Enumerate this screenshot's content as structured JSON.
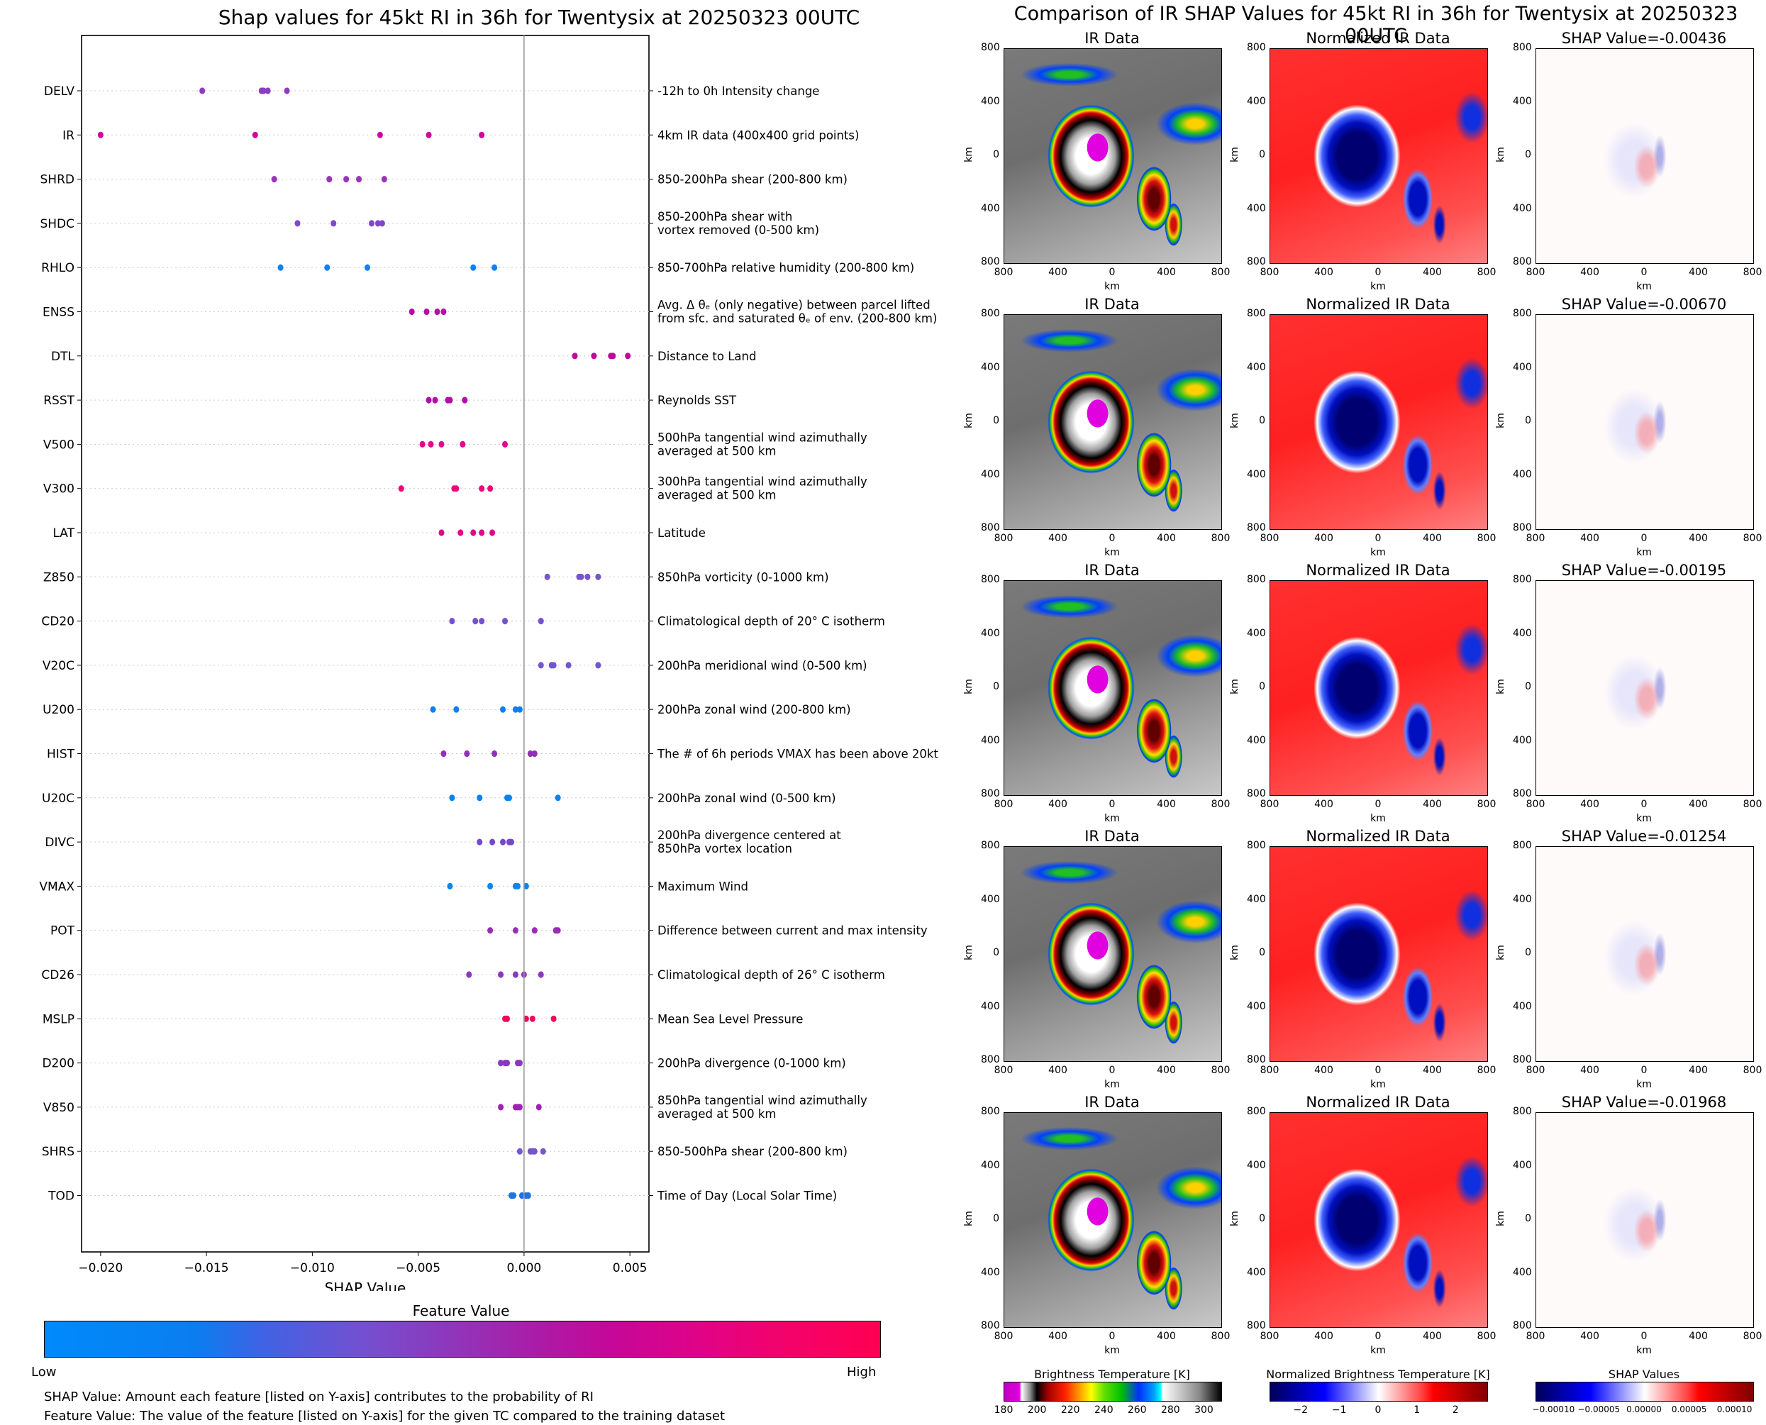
{
  "left_title": "Shap values for 45kt RI in 36h for Twentysix at 20250323 00UTC",
  "right_title": "Comparison of IR SHAP Values for 45kt RI in 36h for Twentysix at 20250323 00UTC",
  "chart_data": [
    {
      "type": "scatter",
      "title": "Shap values for 45kt RI in 36h for Twentysix at 20250323 00UTC",
      "xlabel": "SHAP Value",
      "ylabel": "",
      "xlim": [
        -0.0209,
        0.0059
      ],
      "xticks": [
        -0.02,
        -0.015,
        -0.01,
        -0.005,
        0.0,
        0.005
      ],
      "xtick_labels": [
        "−0.020",
        "−0.015",
        "−0.010",
        "−0.005",
        "0.000",
        "0.005"
      ],
      "zero_line": 0.0,
      "grid": "horizontal dotted",
      "features": [
        {
          "name": "DELV",
          "description": [
            "-12h to 0h Intensity change"
          ],
          "color": "#8e3cbf",
          "values": [
            -0.0152,
            -0.0124,
            -0.0123,
            -0.0121,
            -0.0112
          ]
        },
        {
          "name": "IR",
          "description": [
            "4km IR data (400x400 grid points)"
          ],
          "color": "#d0059f",
          "values": [
            -0.02,
            -0.0127,
            -0.0068,
            -0.0045,
            -0.002
          ]
        },
        {
          "name": "SHRD",
          "description": [
            "850-200hPa shear (200-800 km)"
          ],
          "color": "#9a34b6",
          "values": [
            -0.0118,
            -0.0092,
            -0.0084,
            -0.0078,
            -0.0066
          ]
        },
        {
          "name": "SHDC",
          "description": [
            "850-200hPa shear with",
            "vortex removed (0-500 km)"
          ],
          "color": "#7e48c8",
          "values": [
            -0.0107,
            -0.009,
            -0.0072,
            -0.0069,
            -0.0067
          ]
        },
        {
          "name": "RHLO",
          "description": [
            "850-700hPa relative humidity (200-800 km)"
          ],
          "color": "#1380f0",
          "values": [
            -0.0115,
            -0.0093,
            -0.0074,
            -0.0024,
            -0.0014
          ]
        },
        {
          "name": "ENSS",
          "description": [
            "Avg. Δ θₑ (only negative) between parcel lifted",
            "from sfc. and saturated θₑ of env. (200-800 km)"
          ],
          "color": "#b410a6",
          "values": [
            -0.0053,
            -0.0046,
            -0.0041,
            -0.0038
          ]
        },
        {
          "name": "DTL",
          "description": [
            "Distance to Land"
          ],
          "color": "#c0099f",
          "values": [
            0.0024,
            0.0033,
            0.0041,
            0.0042,
            0.0049
          ]
        },
        {
          "name": "RSST",
          "description": [
            "Reynolds SST"
          ],
          "color": "#b20ea8",
          "values": [
            -0.0045,
            -0.0042,
            -0.0036,
            -0.0035,
            -0.0028
          ]
        },
        {
          "name": "V500",
          "description": [
            "500hPa tangential wind azimuthally",
            "averaged at 500 km"
          ],
          "color": "#e30490",
          "values": [
            -0.0048,
            -0.0044,
            -0.0039,
            -0.0029,
            -0.0009
          ]
        },
        {
          "name": "V300",
          "description": [
            "300hPa tangential wind azimuthally",
            "averaged at 500 km"
          ],
          "color": "#ee0378",
          "values": [
            -0.0058,
            -0.0033,
            -0.0032,
            -0.002,
            -0.0016
          ]
        },
        {
          "name": "LAT",
          "description": [
            "Latitude"
          ],
          "color": "#e1048e",
          "values": [
            -0.0039,
            -0.003,
            -0.0024,
            -0.002,
            -0.0015
          ]
        },
        {
          "name": "Z850",
          "description": [
            "850hPa vorticity (0-1000 km)"
          ],
          "color": "#7755cc",
          "values": [
            0.0011,
            0.0026,
            0.0027,
            0.003,
            0.0035
          ]
        },
        {
          "name": "CD20",
          "description": [
            "Climatological depth of 20° C isotherm"
          ],
          "color": "#7351d0",
          "values": [
            -0.0034,
            -0.0023,
            -0.002,
            -0.0009,
            0.0008
          ]
        },
        {
          "name": "V20C",
          "description": [
            "200hPa meridional wind (0-500 km)"
          ],
          "color": "#7355cf",
          "values": [
            0.0008,
            0.0013,
            0.0014,
            0.0021,
            0.0035
          ]
        },
        {
          "name": "U200",
          "description": [
            "200hPa zonal wind (200-800 km)"
          ],
          "color": "#0a80f2",
          "values": [
            -0.0043,
            -0.0032,
            -0.001,
            -0.0004,
            -0.0002
          ]
        },
        {
          "name": "HIST",
          "description": [
            "The # of 6h periods VMAX has been above 20kt"
          ],
          "color": "#9030b8",
          "values": [
            -0.0038,
            -0.0027,
            -0.0014,
            0.0003,
            0.0005
          ]
        },
        {
          "name": "U20C",
          "description": [
            "200hPa zonal wind (0-500 km)"
          ],
          "color": "#0a80f2",
          "values": [
            -0.0034,
            -0.0021,
            -0.0008,
            -0.0007,
            0.0016
          ]
        },
        {
          "name": "DIVC",
          "description": [
            "200hPa divergence centered at",
            "850hPa vortex location"
          ],
          "color": "#7448ca",
          "values": [
            -0.0021,
            -0.0015,
            -0.001,
            -0.0007,
            -0.0006
          ]
        },
        {
          "name": "VMAX",
          "description": [
            "Maximum Wind"
          ],
          "color": "#0a85f2",
          "values": [
            -0.0035,
            -0.0016,
            -0.0004,
            -0.0003,
            0.0001
          ]
        },
        {
          "name": "POT",
          "description": [
            "Difference between current and max intensity"
          ],
          "color": "#9a2cb5",
          "values": [
            -0.0016,
            -0.0004,
            0.0005,
            0.0015,
            0.0016
          ]
        },
        {
          "name": "CD26",
          "description": [
            "Climatological depth of 26° C isotherm"
          ],
          "color": "#8c38bd",
          "values": [
            -0.0026,
            -0.0011,
            -0.0004,
            0.0,
            0.0008
          ]
        },
        {
          "name": "MSLP",
          "description": [
            "Mean Sea Level Pressure"
          ],
          "color": "#f5065a",
          "values": [
            -0.0009,
            -0.0008,
            0.0001,
            0.0004,
            0.0014
          ]
        },
        {
          "name": "D200",
          "description": [
            "200hPa divergence (0-1000 km)"
          ],
          "color": "#8a38c0",
          "values": [
            -0.0011,
            -0.0009,
            -0.0008,
            -0.0003,
            -0.0002
          ]
        },
        {
          "name": "V850",
          "description": [
            "850hPa tangential wind azimuthally",
            "averaged at 500 km"
          ],
          "color": "#a022b4",
          "values": [
            -0.0011,
            -0.0004,
            -0.0003,
            -0.0002,
            0.0007
          ]
        },
        {
          "name": "SHRS",
          "description": [
            "850-500hPa shear (200-800 km)"
          ],
          "color": "#7755cc",
          "values": [
            -0.0002,
            0.0003,
            0.0004,
            0.0005,
            0.0009
          ]
        },
        {
          "name": "TOD",
          "description": [
            "Time of Day (Local Solar Time)"
          ],
          "color": "#2070e8",
          "values": [
            -0.0006,
            -0.0005,
            -0.0001,
            0.0001,
            0.0002
          ]
        }
      ]
    },
    {
      "type": "heatmap",
      "title": "Comparison of IR SHAP Values for 45kt RI in 36h for Twentysix at 20250323 00UTC",
      "rows": [
        {
          "ir_title": "IR Data",
          "norm_title": "Normalized IR Data",
          "shap_title": "SHAP Value=-0.00436",
          "shap_value": -0.00436
        },
        {
          "ir_title": "IR Data",
          "norm_title": "Normalized IR Data",
          "shap_title": "SHAP Value=-0.00670",
          "shap_value": -0.0067
        },
        {
          "ir_title": "IR Data",
          "norm_title": "Normalized IR Data",
          "shap_title": "SHAP Value=-0.00195",
          "shap_value": -0.00195
        },
        {
          "ir_title": "IR Data",
          "norm_title": "Normalized IR Data",
          "shap_title": "SHAP Value=-0.01254",
          "shap_value": -0.01254
        },
        {
          "ir_title": "IR Data",
          "norm_title": "Normalized IR Data",
          "shap_title": "SHAP Value=-0.01968",
          "shap_value": -0.01968
        }
      ],
      "axis_label": "km",
      "ytick_labels": [
        "800",
        "400",
        "0",
        "400",
        "800"
      ],
      "xtick_labels": [
        "800",
        "400",
        "0",
        "400",
        "800"
      ],
      "colorbars": [
        {
          "title": "Brightness Temperature [K]",
          "ticks": [
            "180",
            "200",
            "220",
            "240",
            "260",
            "280",
            "300"
          ],
          "range": [
            180,
            310
          ]
        },
        {
          "title": "Normalized Brightness Temperature [K]",
          "ticks": [
            "−2",
            "−1",
            "0",
            "1",
            "2"
          ],
          "range": [
            -2.8,
            2.8
          ]
        },
        {
          "title": "SHAP Values",
          "ticks": [
            "−0.00010",
            "−0.00005",
            "0.00000",
            "0.00005",
            "0.00010"
          ],
          "range": [
            -0.00012,
            0.00012
          ]
        }
      ]
    }
  ],
  "feature_colorbar": {
    "title": "Feature Value",
    "low_label": "Low",
    "high_label": "High",
    "low_color": "#008afb",
    "high_color": "#ff0052"
  },
  "notes": [
    "SHAP Value: Amount each feature [listed on Y-axis] contributes to the probability of RI",
    "Feature Value: The value of the feature [listed on Y-axis] for the given TC compared to the training dataset"
  ]
}
